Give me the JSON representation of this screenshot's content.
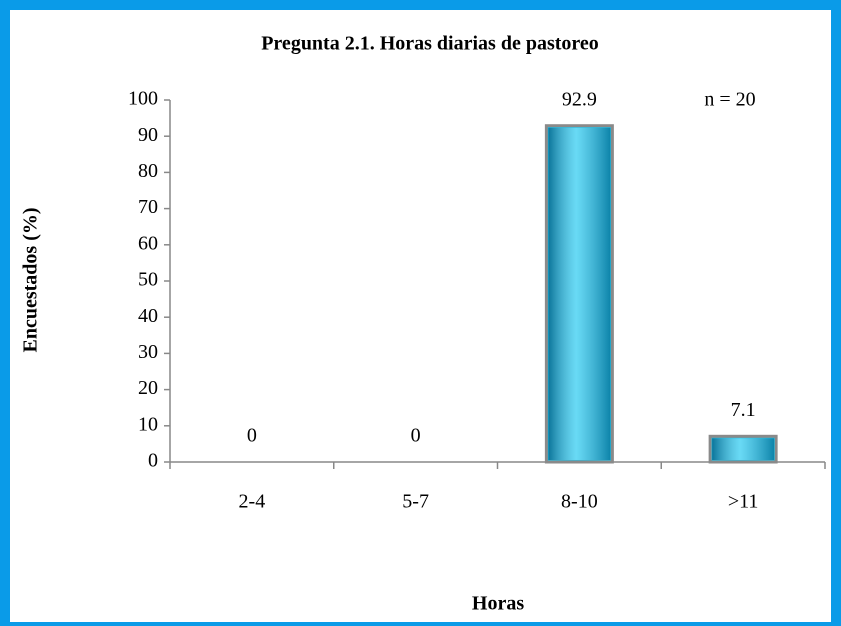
{
  "chart_data": {
    "type": "bar",
    "title": "Pregunta 2.1. Horas diarias de pastoreo",
    "xlabel": "Horas",
    "ylabel": "Encuestados (%)",
    "annotation": "n = 20",
    "categories": [
      "2-4",
      "5-7",
      "8-10",
      ">11"
    ],
    "values": [
      0,
      0,
      92.9,
      7.1
    ],
    "color": "#18c6f0",
    "ylim": [
      0,
      100
    ],
    "yticks": [
      0,
      10,
      20,
      30,
      40,
      50,
      60,
      70,
      80,
      90,
      100
    ],
    "grid": false
  }
}
